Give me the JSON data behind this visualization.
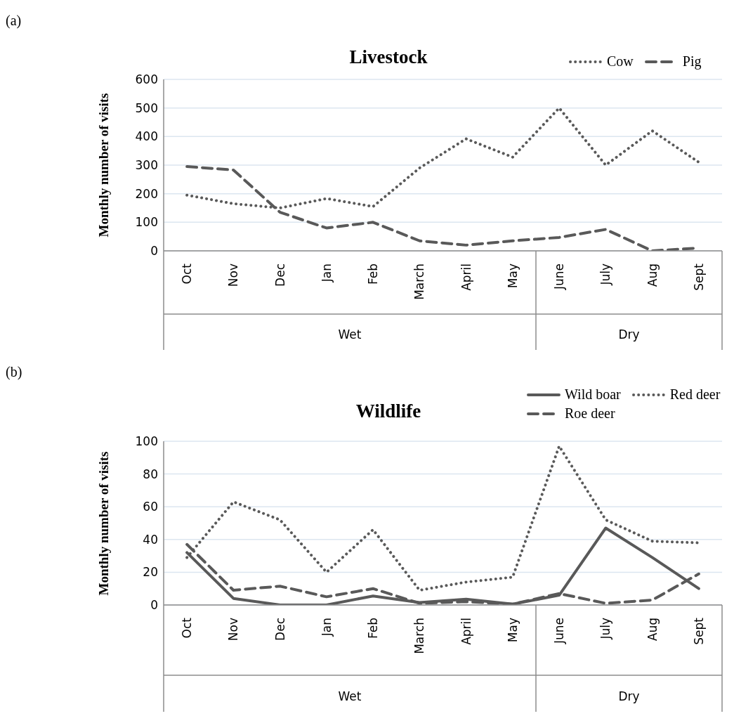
{
  "chart_data": [
    {
      "type": "line",
      "title": "Livestock",
      "ylabel": "Monthly number of visits",
      "categories": [
        "Oct",
        "Nov",
        "Dec",
        "Jan",
        "Feb",
        "March",
        "April",
        "May",
        "June",
        "July",
        "Aug",
        "Sept"
      ],
      "series": [
        {
          "name": "Cow",
          "color": "#595959",
          "line_style": "dotted",
          "values": [
            195,
            165,
            150,
            183,
            155,
            290,
            392,
            328,
            500,
            300,
            420,
            310
          ]
        },
        {
          "name": "Pig",
          "color": "#595959",
          "line_style": "dashed",
          "values": [
            295,
            283,
            135,
            80,
            100,
            35,
            20,
            35,
            47,
            75,
            0,
            10
          ]
        }
      ],
      "ylim": [
        0,
        600
      ],
      "yticks": [
        0,
        100,
        200,
        300,
        400,
        500,
        600
      ],
      "grid": "y",
      "legend": "top right",
      "marker": "none",
      "annotations": [
        "(a)",
        "Wet",
        "Dry"
      ]
    },
    {
      "type": "line",
      "title": "Wildlife",
      "ylabel": "Monthly number of visits",
      "categories": [
        "Oct",
        "Nov",
        "Dec",
        "Jan",
        "Feb",
        "March",
        "April",
        "May",
        "June",
        "July",
        "Aug",
        "Sept"
      ],
      "series": [
        {
          "name": "Wild boar",
          "color": "#595959",
          "line_style": "solid",
          "values": [
            32,
            4,
            0,
            0,
            5.5,
            1.5,
            3.5,
            0.5,
            6,
            47,
            29,
            10
          ]
        },
        {
          "name": "Red deer",
          "color": "#595959",
          "line_style": "dotted",
          "values": [
            29,
            63,
            52,
            20,
            46,
            9,
            14,
            17,
            97,
            52,
            39,
            38
          ]
        },
        {
          "name": "Roe deer",
          "color": "#595959",
          "line_style": "dashed",
          "values": [
            37,
            9,
            11.5,
            5,
            10,
            1,
            2,
            0.5,
            7,
            1,
            3,
            19
          ]
        }
      ],
      "ylim": [
        0,
        100
      ],
      "yticks": [
        0,
        20,
        40,
        60,
        80,
        100
      ],
      "grid": "y",
      "legend": "top right",
      "marker": "none",
      "annotations": [
        "(b)",
        "Wet",
        "Dry"
      ]
    }
  ]
}
